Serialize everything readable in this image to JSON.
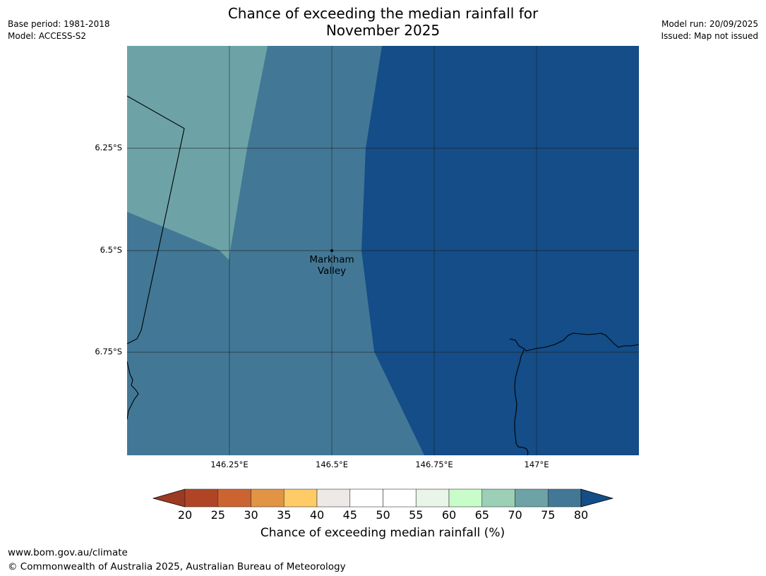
{
  "title": {
    "line1": "Chance of exceeding the median rainfall for",
    "line2": "November 2025"
  },
  "meta_left": {
    "base_period": "Base period: 1981-2018",
    "model": "Model: ACCESS-S2"
  },
  "meta_right": {
    "model_run": "Model run: 20/09/2025",
    "issued": "Issued: Map not issued"
  },
  "map": {
    "lat_labels": [
      "6.25°S",
      "6.5°S",
      "6.75°S"
    ],
    "lon_labels": [
      "146.25°E",
      "146.5°E",
      "146.75°E",
      "147°E"
    ],
    "place": {
      "name_line1": "Markham",
      "name_line2": "Valley"
    }
  },
  "colorbar": {
    "ticks": [
      "20",
      "25",
      "30",
      "35",
      "40",
      "45",
      "50",
      "55",
      "60",
      "65",
      "70",
      "75",
      "80"
    ],
    "colors": [
      "#b04526",
      "#cc6432",
      "#e19444",
      "#fecb66",
      "#ede9e6",
      "#ffffff",
      "#ffffff",
      "#e8f5e8",
      "#c8fcc8",
      "#9bcfb6",
      "#6da3a7",
      "#427896"
    ],
    "under_color": "#9c3a22",
    "over_color": "#144d87",
    "label": "Chance of exceeding median rainfall (%)"
  },
  "legend_colors": {
    "band_70_75": "#6da3a7",
    "band_75_80": "#427896",
    "band_over_80": "#144d87"
  },
  "footer": {
    "url": "www.bom.gov.au/climate",
    "copyright": "© Commonwealth of Australia 2025, Australian Bureau of Meteorology"
  }
}
